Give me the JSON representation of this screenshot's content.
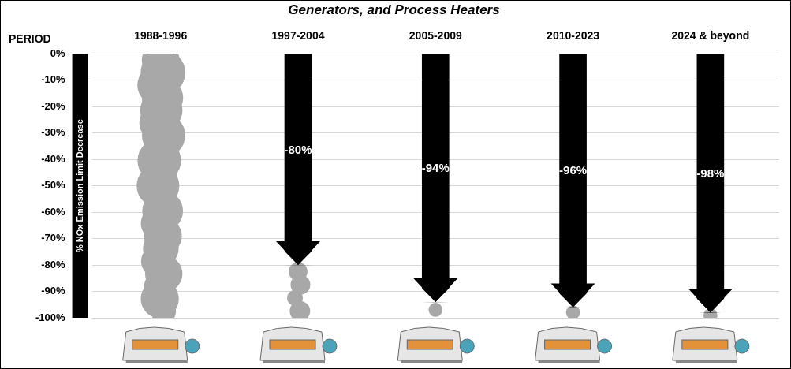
{
  "chart_data": {
    "type": "bar",
    "title": "Generators, and Process Heaters",
    "xlabel": "PERIOD",
    "ylabel": "% NOx Emission Limit Decrease",
    "categories": [
      "1988-1996",
      "1997-2004",
      "2005-2009",
      "2010-2023",
      "2024 & beyond"
    ],
    "values": [
      0,
      -80,
      -94,
      -96,
      -98
    ],
    "value_labels": [
      null,
      "-80%",
      "-94%",
      "-96%",
      "-98%"
    ],
    "color": "#000000",
    "ylim": [
      -100,
      0
    ],
    "yticks": [
      {
        "value": -100,
        "label": "-100%"
      },
      {
        "value": -90,
        "label": "-90%"
      },
      {
        "value": -80,
        "label": "-80%"
      },
      {
        "value": -70,
        "label": "-70%"
      },
      {
        "value": -60,
        "label": "-60%"
      },
      {
        "value": -50,
        "label": "-50%"
      },
      {
        "value": -40,
        "label": "-40%"
      },
      {
        "value": -30,
        "label": "-30%"
      },
      {
        "value": -20,
        "label": "-20%"
      },
      {
        "value": -10,
        "label": "-10%"
      },
      {
        "value": 0,
        "label": "0%"
      }
    ],
    "grid": true,
    "data_labels": true
  }
}
